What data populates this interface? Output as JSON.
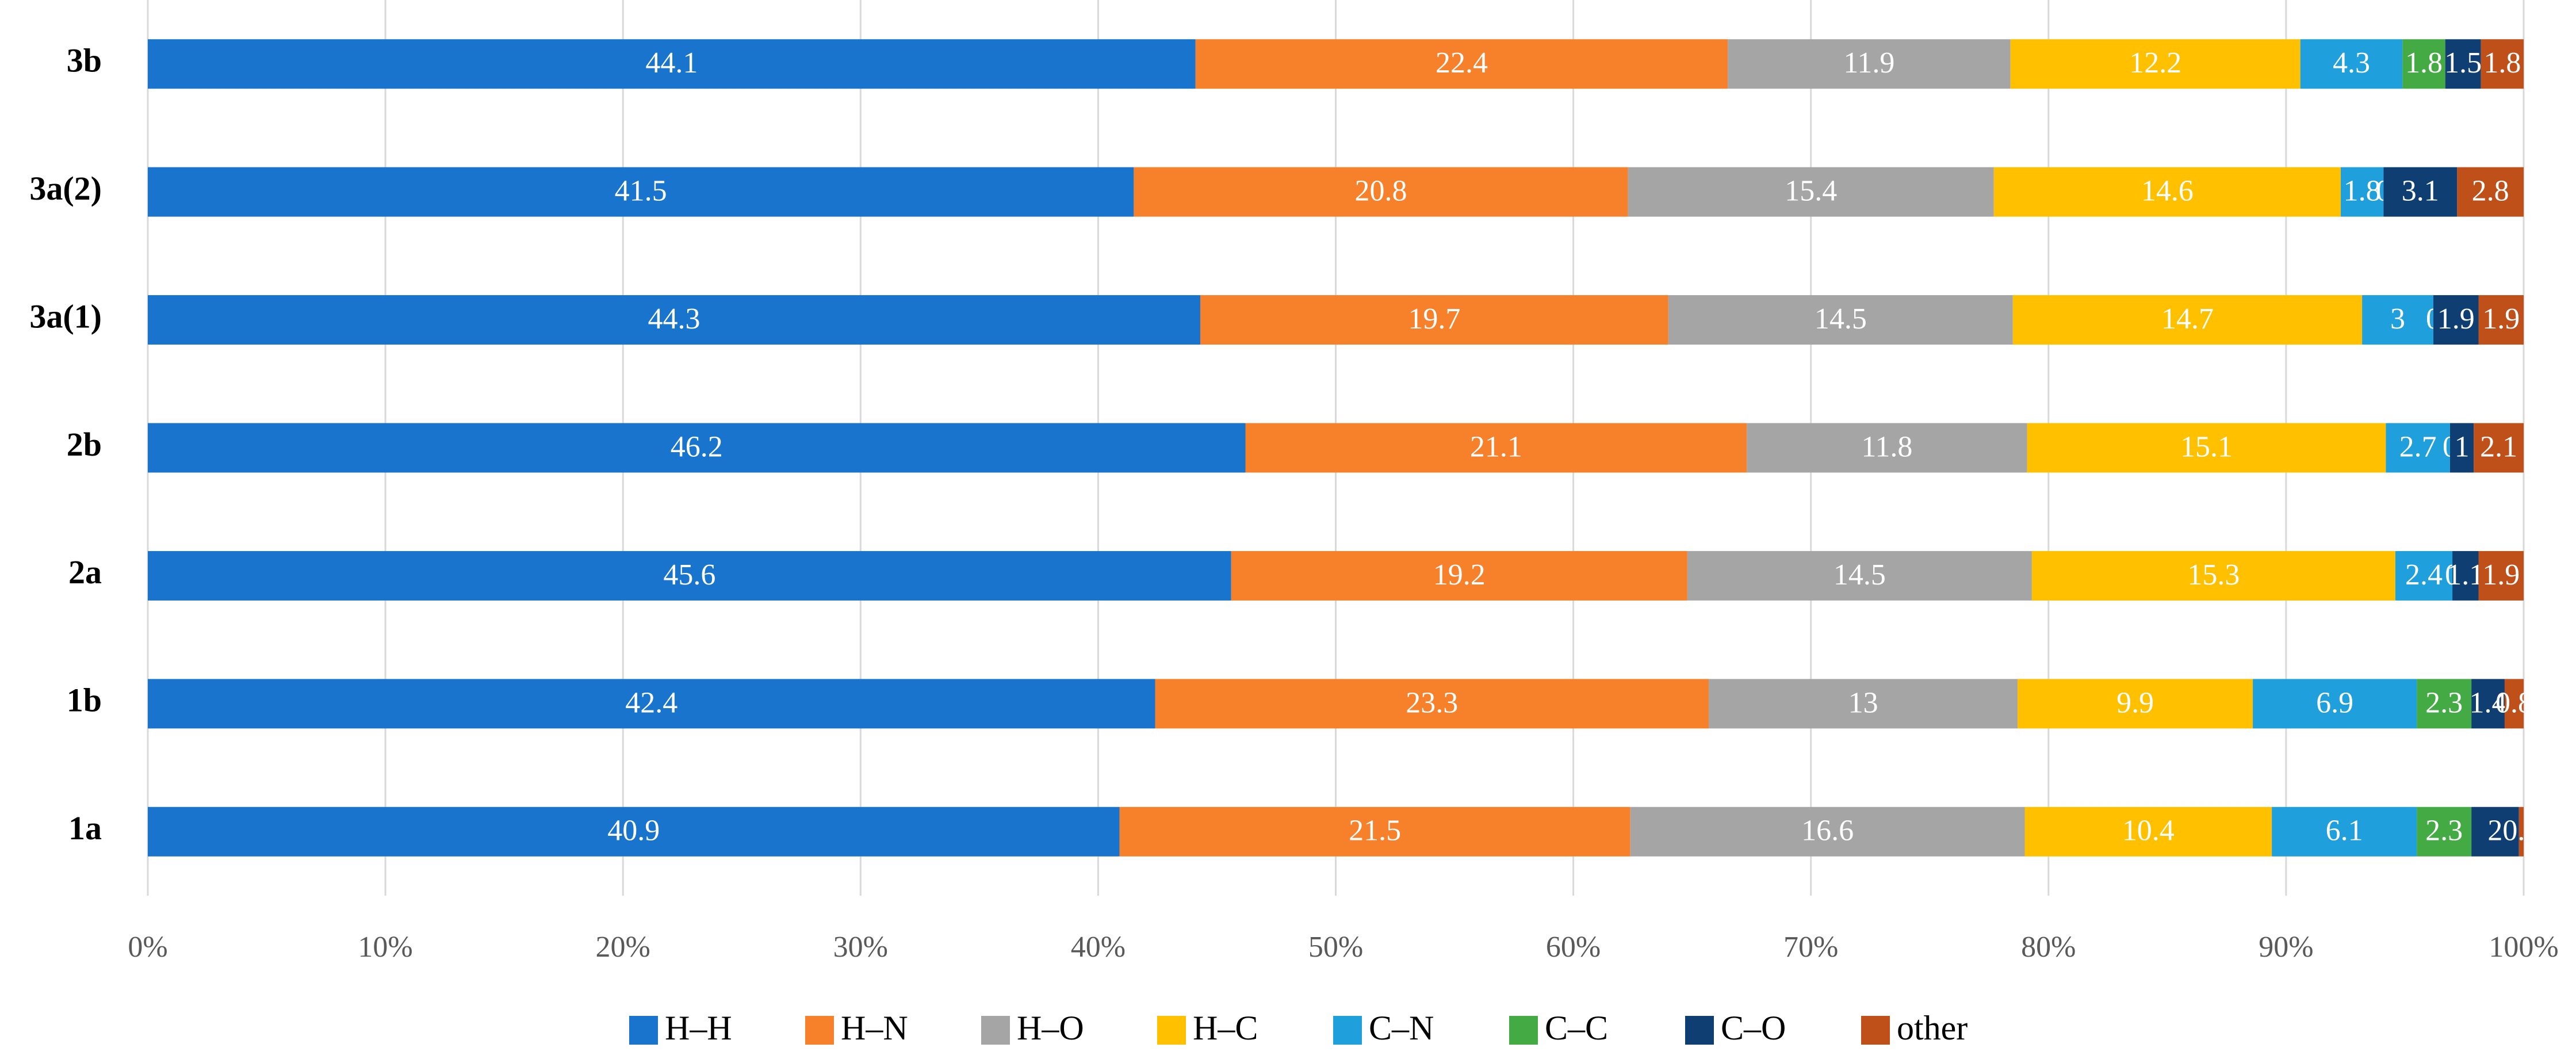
{
  "chart_data": {
    "type": "stacked-bar-horizontal-100",
    "categories": [
      "3b",
      "3a(2)",
      "3a(1)",
      "2b",
      "2a",
      "1b",
      "1a"
    ],
    "series": [
      {
        "name": "H–H",
        "color": "#1874cd",
        "values": [
          44.1,
          41.5,
          44.3,
          46.2,
          45.6,
          42.4,
          40.9
        ]
      },
      {
        "name": "H–N",
        "color": "#f7812b",
        "values": [
          22.4,
          20.8,
          19.7,
          21.1,
          19.2,
          23.3,
          21.5
        ]
      },
      {
        "name": "H–O",
        "color": "#a5a5a5",
        "values": [
          11.9,
          15.4,
          14.5,
          11.8,
          14.5,
          13,
          16.6
        ]
      },
      {
        "name": "H–C",
        "color": "#ffc000",
        "values": [
          12.2,
          14.6,
          14.7,
          15.1,
          15.3,
          9.9,
          10.4
        ]
      },
      {
        "name": "C–N",
        "color": "#1fa0dc",
        "values": [
          4.3,
          1.8,
          3,
          2.7,
          2.4,
          6.9,
          6.1
        ]
      },
      {
        "name": "C–C",
        "color": "#44ab44",
        "values": [
          1.8,
          0,
          0,
          0,
          0,
          2.3,
          2.3
        ]
      },
      {
        "name": "C–O",
        "color": "#0f3e72",
        "values": [
          1.5,
          3.1,
          1.9,
          1,
          1.1,
          1.4,
          2
        ]
      },
      {
        "name": "other",
        "color": "#c0501a",
        "values": [
          1.8,
          2.8,
          1.9,
          2.1,
          1.9,
          0.8,
          0.2
        ]
      }
    ],
    "xlim": [
      0,
      100
    ],
    "xticks": [
      {
        "value": 0,
        "label": "0%"
      },
      {
        "value": 10,
        "label": "10%"
      },
      {
        "value": 20,
        "label": "20%"
      },
      {
        "value": 30,
        "label": "30%"
      },
      {
        "value": 40,
        "label": "40%"
      },
      {
        "value": 50,
        "label": "50%"
      },
      {
        "value": 60,
        "label": "60%"
      },
      {
        "value": 70,
        "label": "70%"
      },
      {
        "value": 80,
        "label": "80%"
      },
      {
        "value": 90,
        "label": "90%"
      },
      {
        "value": 100,
        "label": "100%"
      }
    ],
    "grid": true,
    "legend": "bottom"
  }
}
